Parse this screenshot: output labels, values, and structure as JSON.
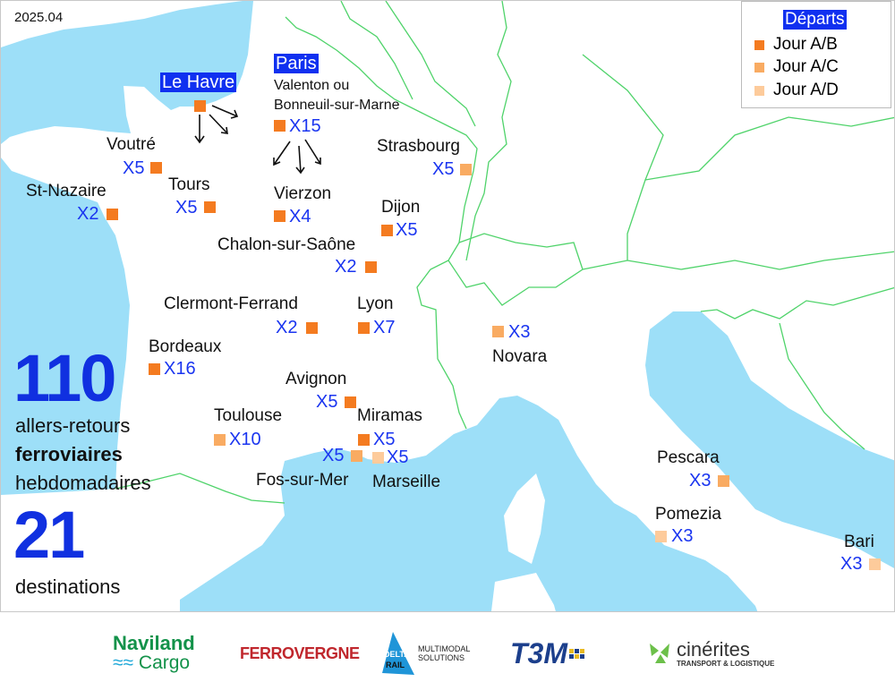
{
  "date": "2025.04",
  "legend": {
    "title": "Départs",
    "items": [
      {
        "label": "Jour A/B",
        "color": "#f47b20"
      },
      {
        "label": "Jour A/C",
        "color": "#f9ab62"
      },
      {
        "label": "Jour A/D",
        "color": "#fdcb9b"
      }
    ]
  },
  "hubs": {
    "le_havre": "Le Havre",
    "paris": "Paris",
    "paris_sub1": "Valenton ou",
    "paris_sub2": "Bonneuil-sur-Marne",
    "paris_freq": "X15"
  },
  "destinations": [
    {
      "name": "Voutré",
      "freq": "X5",
      "departure": "Jour A/B"
    },
    {
      "name": "St-Nazaire",
      "freq": "X2",
      "departure": "Jour A/B"
    },
    {
      "name": "Tours",
      "freq": "X5",
      "departure": "Jour A/B"
    },
    {
      "name": "Vierzon",
      "freq": "X4",
      "departure": "Jour A/B"
    },
    {
      "name": "Strasbourg",
      "freq": "X5",
      "departure": "Jour A/C"
    },
    {
      "name": "Dijon",
      "freq": "X5",
      "departure": "Jour A/B"
    },
    {
      "name": "Chalon-sur-Saône",
      "freq": "X2",
      "departure": "Jour A/B"
    },
    {
      "name": "Clermont-Ferrand",
      "freq": "X2",
      "departure": "Jour A/B"
    },
    {
      "name": "Lyon",
      "freq": "X7",
      "departure": "Jour A/B"
    },
    {
      "name": "Novara",
      "freq": "X3",
      "departure": "Jour A/C"
    },
    {
      "name": "Bordeaux",
      "freq": "X16",
      "departure": "Jour A/B"
    },
    {
      "name": "Avignon",
      "freq": "X5",
      "departure": "Jour A/B"
    },
    {
      "name": "Toulouse",
      "freq": "X10",
      "departure": "Jour A/C"
    },
    {
      "name": "Miramas",
      "freq": "X5",
      "departure": "Jour A/B"
    },
    {
      "name": "Fos-sur-Mer",
      "freq": "X5",
      "departure": "Jour A/C"
    },
    {
      "name": "Marseille",
      "freq": "X5",
      "departure": "Jour A/D"
    },
    {
      "name": "Pescara",
      "freq": "X3",
      "departure": "Jour A/C"
    },
    {
      "name": "Pomezia",
      "freq": "X3",
      "departure": "Jour A/D"
    },
    {
      "name": "Bari",
      "freq": "X3",
      "departure": "Jour A/D"
    }
  ],
  "stats": {
    "trips": "110",
    "trips_l1": "allers-retours",
    "trips_l2": "ferroviaires",
    "trips_l3": "hebdomadaires",
    "dest": "21",
    "dest_l": "destinations"
  },
  "colors": {
    "sea": "#9ddff8",
    "border": "#4fd36a",
    "accent": "#1030f0"
  },
  "partners": [
    "Naviland Cargo",
    "FERROVERGNE",
    "DELTA RAIL Multimodal Solutions",
    "T3M",
    "Cinérites Transport & Logistique"
  ]
}
